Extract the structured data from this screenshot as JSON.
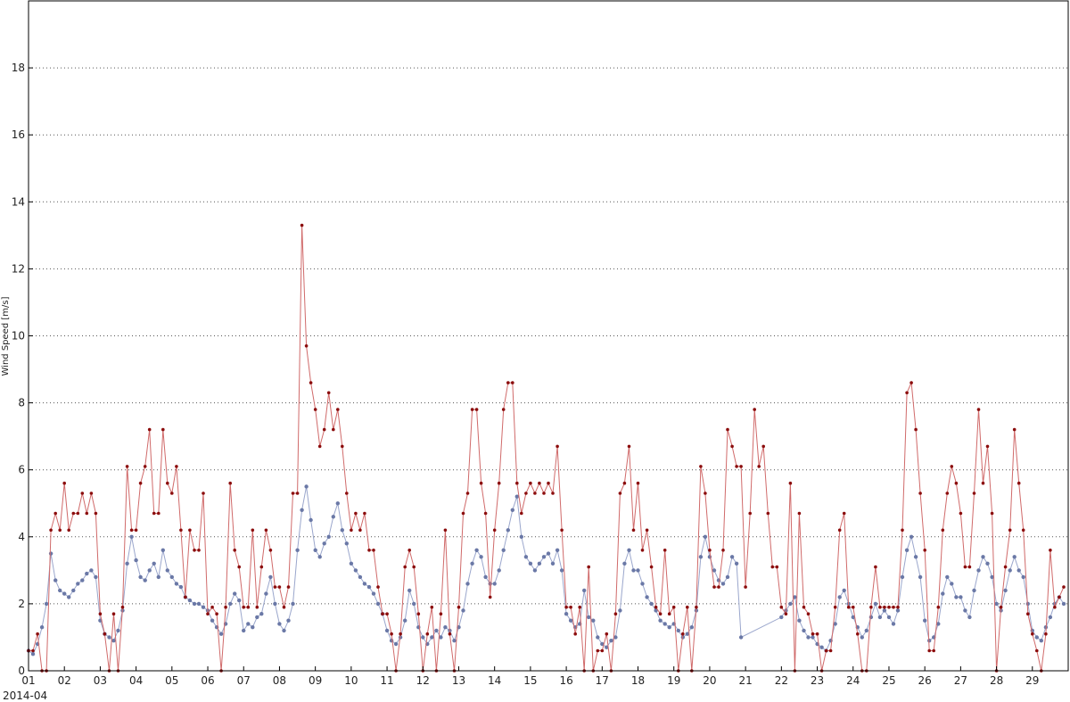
{
  "chart_data": {
    "type": "line",
    "title": "",
    "xlabel": "",
    "x_offset_label": "2014-04",
    "ylabel": "Wind Speed [m/s]",
    "ylim": [
      0,
      20
    ],
    "yticks": [
      "0",
      "2",
      "4",
      "6",
      "8",
      "10",
      "12",
      "14",
      "16",
      "18"
    ],
    "xlim": [
      "2014-04-01",
      "2014-04-30"
    ],
    "xticks": [
      "01",
      "02",
      "03",
      "04",
      "05",
      "06",
      "07",
      "08",
      "09",
      "10",
      "11",
      "12",
      "13",
      "14",
      "15",
      "16",
      "17",
      "18",
      "19",
      "20",
      "21",
      "22",
      "23",
      "24",
      "25",
      "26",
      "27",
      "28",
      "29"
    ],
    "grid": "horizontal dotted",
    "sample_hours": [
      "00:00",
      "03:00",
      "06:00",
      "09:00",
      "12:00",
      "15:00",
      "18:00",
      "21:00"
    ],
    "colors": {
      "mean_marker": "#6a78a6",
      "mean_line": "#9aa6cc",
      "gust_marker": "#8b0d0d",
      "gust_line": "#d06a6a"
    },
    "series": [
      {
        "key": "mean",
        "days": {
          "2014-04-01": [
            0.6,
            0.5,
            0.8,
            1.3,
            2.0,
            3.5,
            2.7,
            2.4
          ],
          "2014-04-02": [
            2.3,
            2.2,
            2.4,
            2.6,
            2.7,
            2.9,
            3.0,
            2.8
          ],
          "2014-04-03": [
            1.5,
            1.1,
            1.0,
            0.9,
            1.2,
            1.8,
            3.2,
            4.0
          ],
          "2014-04-04": [
            3.3,
            2.8,
            2.7,
            3.0,
            3.2,
            2.8,
            3.6,
            3.0
          ],
          "2014-04-05": [
            2.8,
            2.6,
            2.5,
            2.2,
            2.1,
            2.0,
            2.0,
            1.9
          ],
          "2014-04-06": [
            1.8,
            1.5,
            1.3,
            1.1,
            1.4,
            2.0,
            2.3,
            2.1
          ],
          "2014-04-07": [
            1.2,
            1.4,
            1.3,
            1.6,
            1.7,
            2.3,
            2.8,
            2.0
          ],
          "2014-04-08": [
            1.4,
            1.2,
            1.5,
            2.0,
            3.6,
            4.8,
            5.5,
            4.5
          ],
          "2014-04-09": [
            3.6,
            3.4,
            3.8,
            4.0,
            4.6,
            5.0,
            4.2,
            3.8
          ],
          "2014-04-10": [
            3.2,
            3.0,
            2.8,
            2.6,
            2.5,
            2.3,
            2.0,
            1.7
          ],
          "2014-04-11": [
            1.2,
            0.9,
            0.8,
            1.0,
            1.5,
            2.4,
            2.0,
            1.3
          ],
          "2014-04-12": [
            1.0,
            0.8,
            1.0,
            1.2,
            1.0,
            1.3,
            1.2,
            0.9
          ],
          "2014-04-13": [
            1.3,
            1.8,
            2.6,
            3.2,
            3.6,
            3.4,
            2.8,
            2.6
          ],
          "2014-04-14": [
            2.6,
            3.0,
            3.6,
            4.2,
            4.8,
            5.2,
            4.0,
            3.4
          ],
          "2014-04-15": [
            3.2,
            3.0,
            3.2,
            3.4,
            3.5,
            3.2,
            3.6,
            3.0
          ],
          "2014-04-16": [
            1.7,
            1.5,
            1.3,
            1.4,
            2.4,
            1.6,
            1.5,
            1.0
          ],
          "2014-04-17": [
            0.8,
            0.7,
            0.9,
            1.0,
            1.8,
            3.2,
            3.6,
            3.0
          ],
          "2014-04-18": [
            3.0,
            2.6,
            2.2,
            2.0,
            1.8,
            1.5,
            1.4,
            1.3
          ],
          "2014-04-19": [
            1.4,
            1.2,
            1.0,
            1.1,
            1.3,
            1.8,
            3.4,
            4.0
          ],
          "2014-04-20": [
            3.4,
            3.0,
            2.7,
            2.6,
            2.8,
            3.4,
            3.2,
            1.0
          ],
          "2014-04-21": [
            null,
            null,
            null,
            null,
            null,
            null,
            null,
            null
          ],
          "2014-04-22": [
            1.6,
            1.8,
            2.0,
            2.2,
            1.5,
            1.2,
            1.0,
            1.0
          ],
          "2014-04-23": [
            0.8,
            0.7,
            0.6,
            0.9,
            1.4,
            2.2,
            2.4,
            2.0
          ],
          "2014-04-24": [
            1.6,
            1.3,
            1.0,
            1.2,
            1.6,
            2.0,
            1.6,
            1.8
          ],
          "2014-04-25": [
            1.6,
            1.4,
            1.8,
            2.8,
            3.6,
            4.0,
            3.4,
            2.8
          ],
          "2014-04-26": [
            1.5,
            0.9,
            1.0,
            1.4,
            2.3,
            2.8,
            2.6,
            2.2
          ],
          "2014-04-27": [
            2.2,
            1.8,
            1.6,
            2.4,
            3.0,
            3.4,
            3.2,
            2.8
          ],
          "2014-04-28": [
            2.0,
            1.8,
            2.4,
            3.0,
            3.4,
            3.0,
            2.8,
            2.0
          ],
          "2014-04-29": [
            1.2,
            1.0,
            0.9,
            1.3,
            1.6,
            2.0,
            2.2,
            2.0
          ]
        }
      },
      {
        "key": "gust",
        "days": {
          "2014-04-01": [
            0.6,
            0.6,
            1.1,
            0,
            0,
            4.2,
            4.7,
            4.2
          ],
          "2014-04-02": [
            5.6,
            4.2,
            4.7,
            4.7,
            5.3,
            4.7,
            5.3,
            4.7
          ],
          "2014-04-03": [
            1.7,
            1.1,
            0,
            1.7,
            0,
            1.9,
            6.1,
            4.2
          ],
          "2014-04-04": [
            4.2,
            5.6,
            6.1,
            7.2,
            4.7,
            4.7,
            7.2,
            5.6
          ],
          "2014-04-05": [
            5.3,
            6.1,
            4.2,
            2.2,
            4.2,
            3.6,
            3.6,
            5.3
          ],
          "2014-04-06": [
            1.7,
            1.9,
            1.7,
            0,
            1.9,
            5.6,
            3.6,
            3.1
          ],
          "2014-04-07": [
            1.9,
            1.9,
            4.2,
            1.9,
            3.1,
            4.2,
            3.6,
            2.5
          ],
          "2014-04-08": [
            2.5,
            1.9,
            2.5,
            5.3,
            5.3,
            13.3,
            9.7,
            8.6
          ],
          "2014-04-09": [
            7.8,
            6.7,
            7.2,
            8.3,
            7.2,
            7.8,
            6.7,
            5.3
          ],
          "2014-04-10": [
            4.2,
            4.7,
            4.2,
            4.7,
            3.6,
            3.6,
            2.5,
            1.7
          ],
          "2014-04-11": [
            1.7,
            1.1,
            0,
            1.1,
            3.1,
            3.6,
            3.1,
            1.7
          ],
          "2014-04-12": [
            0,
            1.1,
            1.9,
            0,
            1.7,
            4.2,
            1.1,
            0
          ],
          "2014-04-13": [
            1.9,
            4.7,
            5.3,
            7.8,
            7.8,
            5.6,
            4.7,
            2.2
          ],
          "2014-04-14": [
            4.2,
            5.6,
            7.8,
            8.6,
            8.6,
            5.6,
            4.7,
            5.3
          ],
          "2014-04-15": [
            5.6,
            5.3,
            5.6,
            5.3,
            5.6,
            5.3,
            6.7,
            4.2
          ],
          "2014-04-16": [
            1.9,
            1.9,
            1.1,
            1.9,
            0,
            3.1,
            0,
            0.6
          ],
          "2014-04-17": [
            0.6,
            1.1,
            0,
            1.7,
            5.3,
            5.6,
            6.7,
            4.2
          ],
          "2014-04-18": [
            5.6,
            3.6,
            4.2,
            3.1,
            1.9,
            1.7,
            3.6,
            1.7
          ],
          "2014-04-19": [
            1.9,
            0,
            1.1,
            1.9,
            0,
            1.9,
            6.1,
            5.3
          ],
          "2014-04-20": [
            3.6,
            2.5,
            2.5,
            3.6,
            7.2,
            6.7,
            6.1,
            6.1
          ],
          "2014-04-21": [
            2.5,
            4.7,
            7.8,
            6.1,
            6.7,
            4.7,
            3.1,
            3.1
          ],
          "2014-04-22": [
            1.9,
            1.7,
            5.6,
            0,
            4.7,
            1.9,
            1.7,
            1.1
          ],
          "2014-04-23": [
            1.1,
            0,
            0.6,
            0.6,
            1.9,
            4.2,
            4.7,
            1.9
          ],
          "2014-04-24": [
            1.9,
            1.1,
            0,
            0,
            1.9,
            3.1,
            1.9,
            1.9
          ],
          "2014-04-25": [
            1.9,
            1.9,
            1.9,
            4.2,
            8.3,
            8.6,
            7.2,
            5.3
          ],
          "2014-04-26": [
            3.6,
            0.6,
            0.6,
            1.9,
            4.2,
            5.3,
            6.1,
            5.6
          ],
          "2014-04-27": [
            4.7,
            3.1,
            3.1,
            5.3,
            7.8,
            5.6,
            6.7,
            4.7
          ],
          "2014-04-28": [
            0,
            1.9,
            3.1,
            4.2,
            7.2,
            5.6,
            4.2,
            1.7
          ],
          "2014-04-29": [
            1.1,
            0.6,
            0,
            1.1,
            3.6,
            1.9,
            2.2,
            2.5
          ]
        }
      }
    ]
  }
}
